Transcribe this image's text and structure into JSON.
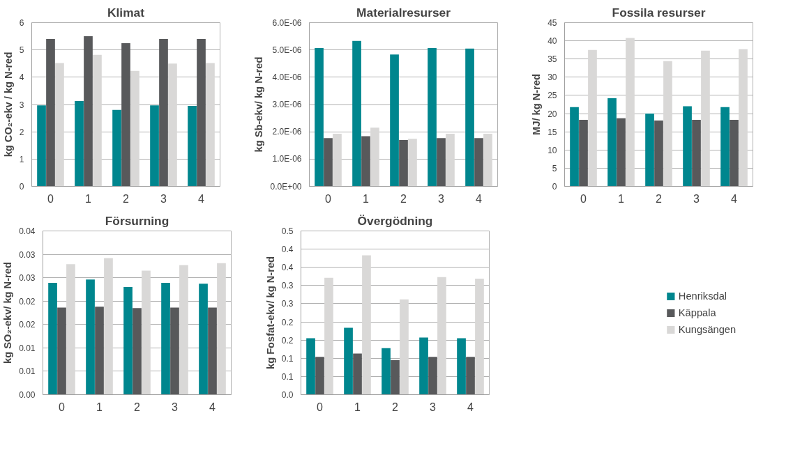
{
  "chart_data": [
    {
      "type": "bar",
      "title": "Klimat",
      "ylabel": "kg CO₂-ekv / kg N-red",
      "categories": [
        "0",
        "1",
        "2",
        "3",
        "4"
      ],
      "ylim": [
        0,
        6
      ],
      "yticks": [
        0,
        1,
        2,
        3,
        4,
        5,
        6
      ],
      "grid": "y",
      "legend": false,
      "series": [
        {
          "color": "#00868e",
          "values": [
            2.97,
            3.13,
            2.8,
            2.97,
            2.95
          ]
        },
        {
          "color": "#58595b",
          "values": [
            5.4,
            5.5,
            5.25,
            5.4,
            5.4
          ]
        },
        {
          "color": "#d9d8d7",
          "values": [
            4.52,
            4.82,
            4.23,
            4.5,
            4.52
          ]
        }
      ]
    },
    {
      "type": "bar",
      "title": "Materialresurser",
      "ylabel": "kg Sb-ekv/ kg N-red",
      "categories": [
        "0",
        "1",
        "2",
        "3",
        "4"
      ],
      "ylim": [
        0,
        6e-06
      ],
      "yticks": [
        {
          "value": 0,
          "label": "0.0E+00"
        },
        {
          "value": 1e-06,
          "label": "1.0E-06"
        },
        {
          "value": 2e-06,
          "label": "2.0E-06"
        },
        {
          "value": 3e-06,
          "label": "3.0E-06"
        },
        {
          "value": 4e-06,
          "label": "4.0E-06"
        },
        {
          "value": 5e-06,
          "label": "5.0E-06"
        },
        {
          "value": 6e-06,
          "label": "6.0E-06"
        }
      ],
      "grid": "y",
      "legend": false,
      "series": [
        {
          "color": "#00868e",
          "values": [
            5.07e-06,
            5.33e-06,
            4.83e-06,
            5.07e-06,
            5.05e-06
          ]
        },
        {
          "color": "#58595b",
          "values": [
            1.77e-06,
            1.84e-06,
            1.7e-06,
            1.77e-06,
            1.77e-06
          ]
        },
        {
          "color": "#d9d8d7",
          "values": [
            1.93e-06,
            2.15e-06,
            1.74e-06,
            1.93e-06,
            1.93e-06
          ]
        }
      ]
    },
    {
      "type": "bar",
      "title": "Fossila resurser",
      "ylabel": "MJ/ kg N-red",
      "categories": [
        "0",
        "1",
        "2",
        "3",
        "4"
      ],
      "ylim": [
        0,
        45
      ],
      "yticks": [
        0,
        5,
        10,
        15,
        20,
        25,
        30,
        35,
        40,
        45
      ],
      "grid": "y",
      "legend": false,
      "series": [
        {
          "color": "#00868e",
          "values": [
            21.8,
            24.2,
            20,
            22,
            21.8
          ]
        },
        {
          "color": "#58595b",
          "values": [
            18.3,
            18.7,
            18.1,
            18.3,
            18.3
          ]
        },
        {
          "color": "#d9d8d7",
          "values": [
            37.5,
            40.8,
            34.4,
            37.3,
            37.7
          ]
        }
      ]
    },
    {
      "type": "bar",
      "title": "Försurning",
      "ylabel": "kg SO₂-ekv/ kg N-red",
      "categories": [
        "0",
        "1",
        "2",
        "3",
        "4"
      ],
      "ylim": [
        0,
        0.035
      ],
      "yticks": [
        {
          "value": 0,
          "label": "0.00"
        },
        {
          "value": 0.005,
          "label": "0.01"
        },
        {
          "value": 0.01,
          "label": "0.01"
        },
        {
          "value": 0.015,
          "label": "0.02"
        },
        {
          "value": 0.02,
          "label": "0.02"
        },
        {
          "value": 0.025,
          "label": "0.03"
        },
        {
          "value": 0.03,
          "label": "0.03"
        },
        {
          "value": 0.035,
          "label": "0.04"
        }
      ],
      "grid": "y",
      "legend": false,
      "series": [
        {
          "color": "#00868e",
          "values": [
            0.0239,
            0.0246,
            0.023,
            0.0239,
            0.0237
          ]
        },
        {
          "color": "#58595b",
          "values": [
            0.0186,
            0.0188,
            0.0185,
            0.0186,
            0.0186
          ]
        },
        {
          "color": "#d9d8d7",
          "values": [
            0.0279,
            0.0292,
            0.0265,
            0.0277,
            0.0281
          ]
        }
      ]
    },
    {
      "type": "bar",
      "title": "Övergödning",
      "ylabel": "kg Fosfat-ekv/ kg N-red",
      "categories": [
        "0",
        "1",
        "2",
        "3",
        "4"
      ],
      "ylim": [
        0,
        0.45
      ],
      "yticks": [
        {
          "value": 0,
          "label": "0.0"
        },
        {
          "value": 0.05,
          "label": "0.1"
        },
        {
          "value": 0.1,
          "label": "0.1"
        },
        {
          "value": 0.15,
          "label": "0.2"
        },
        {
          "value": 0.2,
          "label": "0.2"
        },
        {
          "value": 0.25,
          "label": "0.3"
        },
        {
          "value": 0.3,
          "label": "0.3"
        },
        {
          "value": 0.35,
          "label": "0.4"
        },
        {
          "value": 0.4,
          "label": "0.4"
        },
        {
          "value": 0.45,
          "label": "0.5"
        }
      ],
      "grid": "y",
      "legend": "right",
      "series": [
        {
          "name": "Henriksdal",
          "color": "#00868e",
          "values": [
            0.155,
            0.184,
            0.128,
            0.157,
            0.155
          ]
        },
        {
          "name": "Käppala",
          "color": "#58595b",
          "values": [
            0.104,
            0.113,
            0.095,
            0.104,
            0.104
          ]
        },
        {
          "name": "Kungsängen",
          "color": "#d9d8d7",
          "values": [
            0.321,
            0.383,
            0.262,
            0.323,
            0.319
          ]
        }
      ]
    }
  ]
}
